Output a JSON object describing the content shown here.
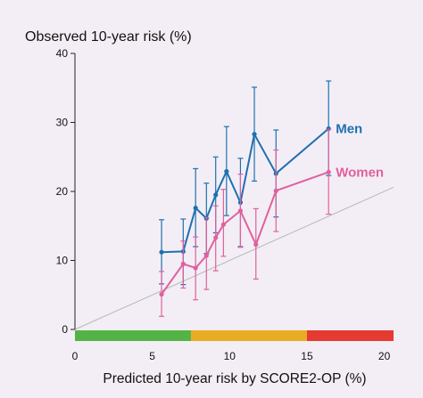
{
  "chart_data": {
    "type": "line",
    "ylabel": "Observed 10-year risk (%)",
    "xlabel": "Predicted 10-year risk by SCORE2-OP (%)",
    "xlim": [
      0,
      20.6
    ],
    "ylim": [
      0,
      40
    ],
    "x_ticks": [
      0,
      5,
      10,
      15,
      20
    ],
    "y_ticks": [
      0,
      10,
      20,
      30,
      40
    ],
    "grid": false,
    "legend": "inline labels at right end of each series",
    "reference_line": {
      "x": [
        0,
        20.6
      ],
      "y": [
        0,
        20.6
      ],
      "color": "#b8b8b8"
    },
    "risk_bands": [
      {
        "from": 0,
        "to": 7.5,
        "color": "#54b346"
      },
      {
        "from": 7.5,
        "to": 15,
        "color": "#e8ad23"
      },
      {
        "from": 15,
        "to": 20.6,
        "color": "#e53a32"
      }
    ],
    "series": [
      {
        "name": "Men",
        "color": "#1e70b0",
        "x": [
          5.6,
          7.0,
          7.8,
          8.5,
          9.1,
          9.8,
          10.7,
          11.6,
          13.0,
          16.4
        ],
        "y": [
          11.2,
          11.3,
          17.6,
          16.1,
          19.5,
          22.9,
          18.4,
          28.3,
          22.6,
          29.1
        ],
        "y_low": [
          6.6,
          6.5,
          12.0,
          11.0,
          14.0,
          16.5,
          12.0,
          21.5,
          16.3,
          22.3
        ],
        "y_high": [
          15.9,
          16.0,
          23.3,
          21.2,
          25.0,
          29.4,
          24.8,
          35.1,
          28.9,
          36.0
        ]
      },
      {
        "name": "Women",
        "color": "#e0609e",
        "x": [
          5.6,
          7.0,
          7.8,
          8.5,
          9.1,
          9.6,
          10.7,
          11.7,
          13.0,
          16.4
        ],
        "y": [
          5.1,
          9.5,
          8.9,
          10.7,
          13.3,
          15.2,
          17.2,
          12.3,
          20.1,
          22.8
        ],
        "y_low": [
          1.9,
          6.0,
          4.3,
          5.8,
          8.5,
          10.6,
          11.9,
          7.3,
          14.2,
          16.7
        ],
        "y_high": [
          8.4,
          12.8,
          13.4,
          16.2,
          17.9,
          20.3,
          22.5,
          17.5,
          26.0,
          29.0
        ]
      }
    ]
  }
}
